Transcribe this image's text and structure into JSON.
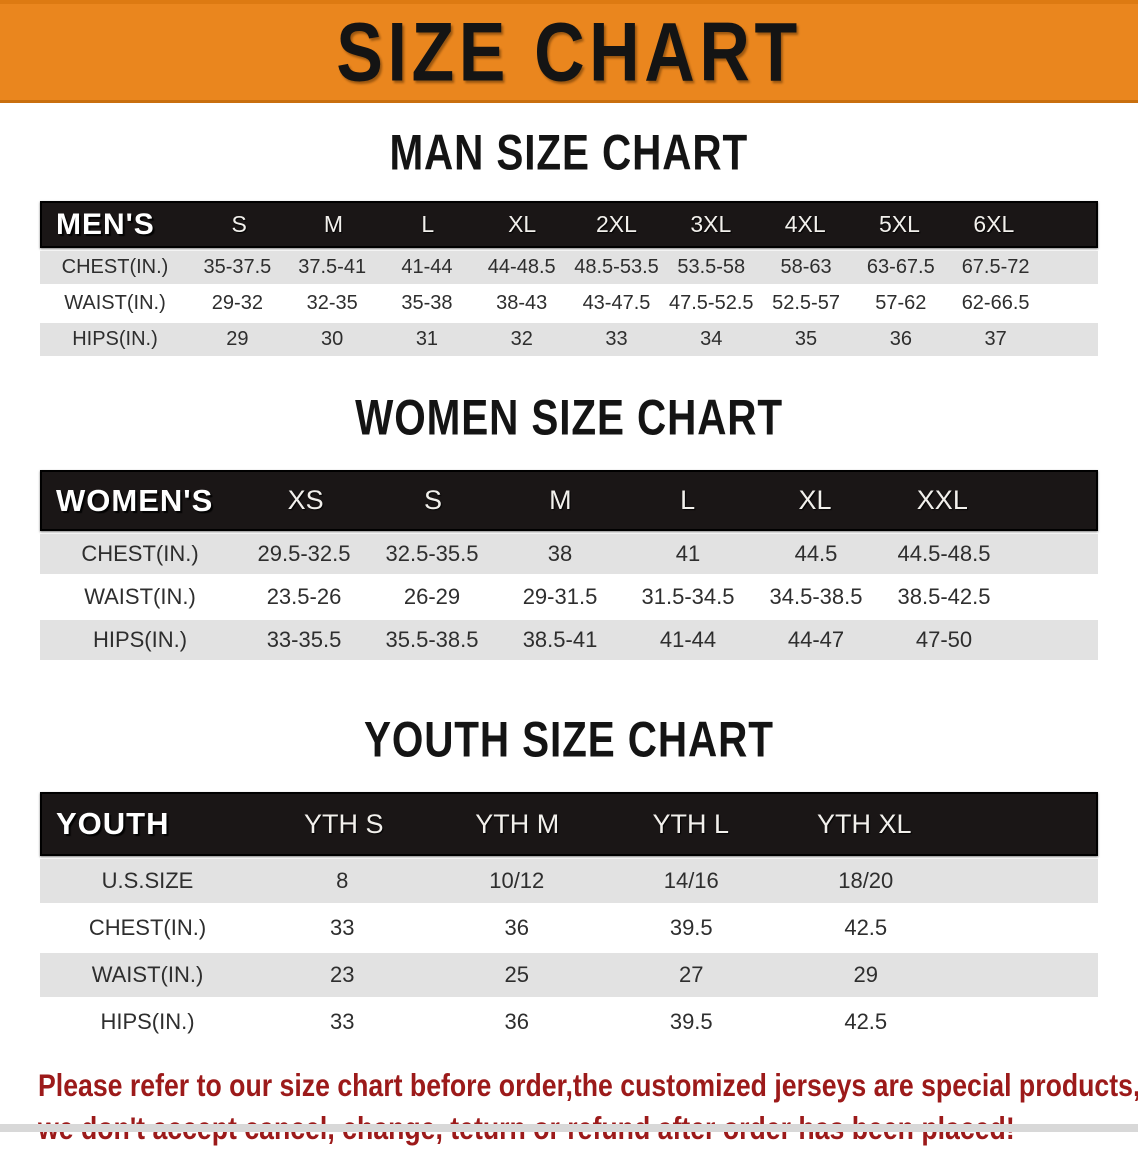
{
  "banner": {
    "title": "SIZE CHART",
    "bg_color": "#EA861E",
    "text_color": "#141414"
  },
  "chart_data": [
    {
      "type": "table",
      "title": "MAN SIZE CHART",
      "corner_label": "MEN'S",
      "columns": [
        "S",
        "M",
        "L",
        "XL",
        "2XL",
        "3XL",
        "4XL",
        "5XL",
        "6XL"
      ],
      "rows": [
        {
          "label": "CHEST(IN.)",
          "values": [
            "35-37.5",
            "37.5-41",
            "41-44",
            "44-48.5",
            "48.5-53.5",
            "53.5-58",
            "58-63",
            "63-67.5",
            "67.5-72"
          ]
        },
        {
          "label": "WAIST(IN.)",
          "values": [
            "29-32",
            "32-35",
            "35-38",
            "38-43",
            "43-47.5",
            "47.5-52.5",
            "52.5-57",
            "57-62",
            "62-66.5"
          ]
        },
        {
          "label": "HIPS(IN.)",
          "values": [
            "29",
            "30",
            "31",
            "32",
            "33",
            "34",
            "35",
            "36",
            "37"
          ]
        }
      ]
    },
    {
      "type": "table",
      "title": "WOMEN SIZE CHART",
      "corner_label": "WOMEN'S",
      "columns": [
        "XS",
        "S",
        "M",
        "L",
        "XL",
        "XXL"
      ],
      "rows": [
        {
          "label": "CHEST(IN.)",
          "values": [
            "29.5-32.5",
            "32.5-35.5",
            "38",
            "41",
            "44.5",
            "44.5-48.5"
          ]
        },
        {
          "label": "WAIST(IN.)",
          "values": [
            "23.5-26",
            "26-29",
            "29-31.5",
            "31.5-34.5",
            "34.5-38.5",
            "38.5-42.5"
          ]
        },
        {
          "label": "HIPS(IN.)",
          "values": [
            "33-35.5",
            "35.5-38.5",
            "38.5-41",
            "41-44",
            "44-47",
            "47-50"
          ]
        }
      ]
    },
    {
      "type": "table",
      "title": "YOUTH SIZE CHART",
      "corner_label": "YOUTH",
      "columns": [
        "YTH S",
        "YTH M",
        "YTH L",
        "YTH XL"
      ],
      "rows": [
        {
          "label": "U.S.SIZE",
          "values": [
            "8",
            "10/12",
            "14/16",
            "18/20"
          ]
        },
        {
          "label": "CHEST(IN.)",
          "values": [
            "33",
            "36",
            "39.5",
            "42.5"
          ]
        },
        {
          "label": "WAIST(IN.)",
          "values": [
            "23",
            "25",
            "27",
            "29"
          ]
        },
        {
          "label": "HIPS(IN.)",
          "values": [
            "33",
            "36",
            "39.5",
            "42.5"
          ]
        }
      ]
    }
  ],
  "footer": {
    "line1": "Please refer to our size chart before order,the customized jerseys are special products,",
    "line2": "we don't accept cancel, change, teturn or refund after order has been placed!",
    "text_color": "#9C1A1A"
  },
  "colors": {
    "header_bar": "#1A1616",
    "row_stripe_gray": "#E2E2E2",
    "row_stripe_white": "#FFFFFF",
    "bottom_strip": "#D8D8D8"
  }
}
